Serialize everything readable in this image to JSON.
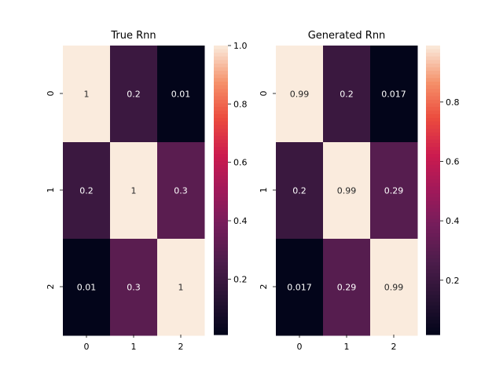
{
  "chart_data": [
    {
      "type": "heatmap",
      "title": "True Rnn",
      "x_tick_labels": [
        "0",
        "1",
        "2"
      ],
      "y_tick_labels": [
        "0",
        "1",
        "2"
      ],
      "values": [
        [
          1,
          0.2,
          0.01
        ],
        [
          0.2,
          1,
          0.3
        ],
        [
          0.01,
          0.3,
          1
        ]
      ],
      "annotations": [
        [
          "1",
          "0.2",
          "0.01"
        ],
        [
          "0.2",
          "1",
          "0.3"
        ],
        [
          "0.01",
          "0.3",
          "1"
        ]
      ],
      "color_range": [
        0.01,
        1.0
      ],
      "colorbar_ticks": [
        0.2,
        0.4,
        0.6,
        0.8,
        1.0
      ],
      "colorbar_tick_labels": [
        "0.2",
        "0.4",
        "0.6",
        "0.8",
        "1.0"
      ],
      "colormap": "rocket"
    },
    {
      "type": "heatmap",
      "title": "Generated Rnn",
      "x_tick_labels": [
        "0",
        "1",
        "2"
      ],
      "y_tick_labels": [
        "0",
        "1",
        "2"
      ],
      "values": [
        [
          0.99,
          0.2,
          0.017
        ],
        [
          0.2,
          0.99,
          0.29
        ],
        [
          0.017,
          0.29,
          0.99
        ]
      ],
      "annotations": [
        [
          "0.99",
          "0.2",
          "0.017"
        ],
        [
          "0.2",
          "0.99",
          "0.29"
        ],
        [
          "0.017",
          "0.29",
          "0.99"
        ]
      ],
      "color_range": [
        0.017,
        0.99
      ],
      "colorbar_ticks": [
        0.2,
        0.4,
        0.6,
        0.8
      ],
      "colorbar_tick_labels": [
        "0.2",
        "0.4",
        "0.6",
        "0.8"
      ],
      "colormap": "rocket"
    }
  ]
}
